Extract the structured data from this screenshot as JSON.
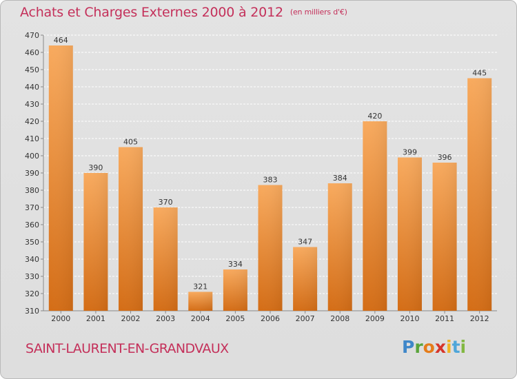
{
  "chart_data": {
    "type": "bar",
    "title": "Achats et Charges Externes 2000 à 2012",
    "unit": "(en milliers d'€)",
    "categories": [
      "2000",
      "2001",
      "2002",
      "2003",
      "2004",
      "2005",
      "2006",
      "2007",
      "2008",
      "2009",
      "2010",
      "2011",
      "2012"
    ],
    "values": [
      464,
      390,
      405,
      370,
      321,
      334,
      383,
      347,
      384,
      420,
      399,
      396,
      445
    ],
    "ylim": [
      310,
      470
    ],
    "yticks": [
      310,
      320,
      330,
      340,
      350,
      360,
      370,
      380,
      390,
      400,
      410,
      420,
      430,
      440,
      450,
      460,
      470
    ],
    "grid": true,
    "bar_color_top": "#f7a65a",
    "bar_color_bottom": "#d97018"
  },
  "footer": {
    "commune": "SAINT-LAURENT-EN-GRANDVAUX"
  },
  "logo": {
    "letters": [
      "P",
      "r",
      "o",
      "x",
      "i",
      "t",
      "i"
    ]
  },
  "colors": {
    "title": "#c4305a",
    "background": "#e0e0e0",
    "grid": "#ffffff"
  }
}
